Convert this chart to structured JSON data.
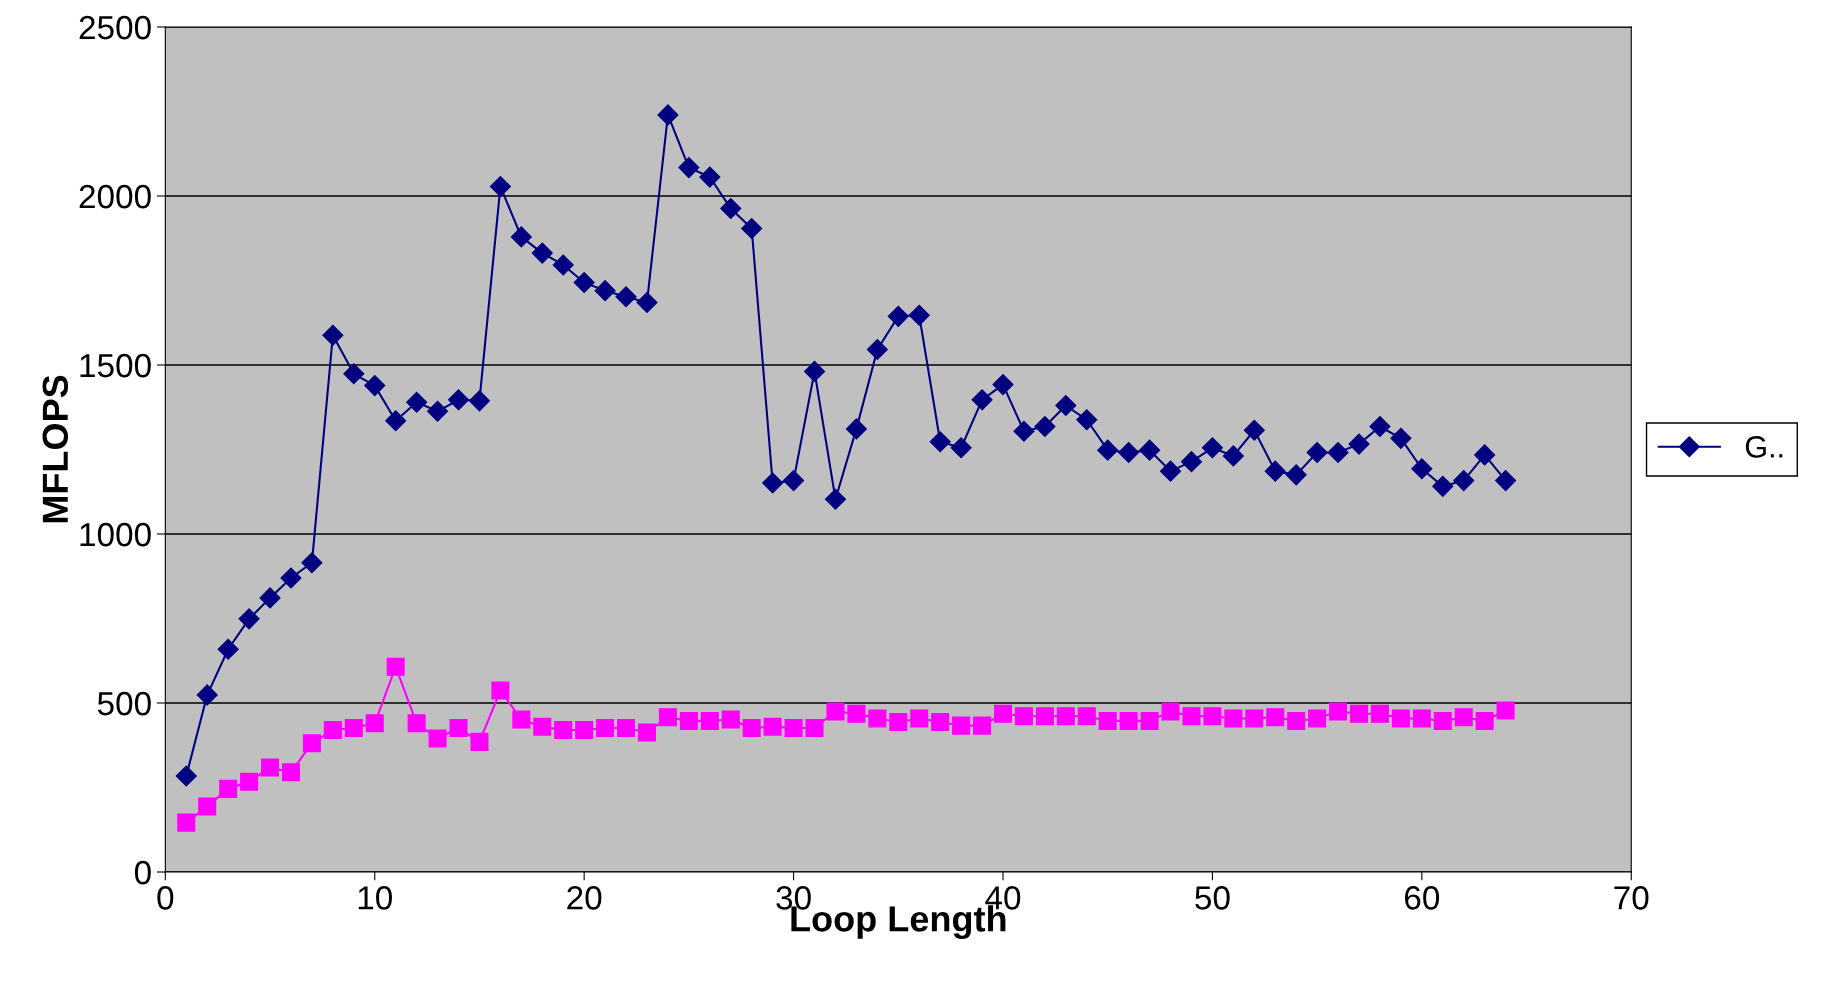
{
  "chart_data": {
    "type": "line",
    "xlabel": "Loop Length",
    "ylabel": "MFLOPS",
    "x": [
      1,
      2,
      3,
      4,
      5,
      6,
      7,
      8,
      9,
      10,
      11,
      12,
      13,
      14,
      15,
      16,
      17,
      18,
      19,
      20,
      21,
      22,
      23,
      24,
      25,
      26,
      27,
      28,
      29,
      30,
      31,
      32,
      33,
      34,
      35,
      36,
      37,
      38,
      39,
      40,
      41,
      42,
      43,
      44,
      45,
      46,
      47,
      48,
      49,
      50,
      51,
      52,
      53,
      54,
      55,
      56,
      57,
      58,
      59,
      60,
      61,
      62,
      63,
      64
    ],
    "series": [
      {
        "name": "G..",
        "color": "#000080",
        "marker": "diamond",
        "values": [
          284,
          524,
          659,
          749,
          811,
          870,
          915,
          1588,
          1474,
          1439,
          1335,
          1390,
          1363,
          1397,
          1394,
          2028,
          1879,
          1831,
          1796,
          1744,
          1720,
          1702,
          1685,
          2240,
          2084,
          2056,
          1963,
          1904,
          1151,
          1158,
          1481,
          1103,
          1311,
          1546,
          1644,
          1647,
          1273,
          1255,
          1397,
          1442,
          1304,
          1318,
          1380,
          1338,
          1248,
          1241,
          1248,
          1186,
          1214,
          1255,
          1231,
          1307,
          1186,
          1175,
          1241,
          1241,
          1266,
          1318,
          1283,
          1193,
          1141,
          1158,
          1234,
          1158
        ]
      },
      {
        "color": "#ff00ff",
        "marker": "square",
        "values": [
          146,
          194,
          246,
          267,
          309,
          295,
          381,
          420,
          426,
          440,
          607,
          440,
          395,
          426,
          385,
          537,
          451,
          430,
          420,
          420,
          426,
          426,
          413,
          458,
          447,
          447,
          451,
          426,
          430,
          426,
          426,
          475,
          468,
          454,
          444,
          454,
          444,
          433,
          433,
          468,
          461,
          461,
          461,
          461,
          447,
          447,
          447,
          475,
          461,
          461,
          454,
          454,
          458,
          447,
          454,
          475,
          468,
          468,
          454,
          454,
          447,
          458,
          447,
          478
        ]
      }
    ],
    "xlim": [
      0,
      70
    ],
    "xticks": [
      0,
      10,
      20,
      30,
      40,
      50,
      60,
      70
    ],
    "ylim": [
      0,
      2500
    ],
    "yticks": [
      0,
      500,
      1000,
      1500,
      2000,
      2500
    ],
    "grid": "y",
    "legend": "right",
    "line_style": "solid"
  }
}
